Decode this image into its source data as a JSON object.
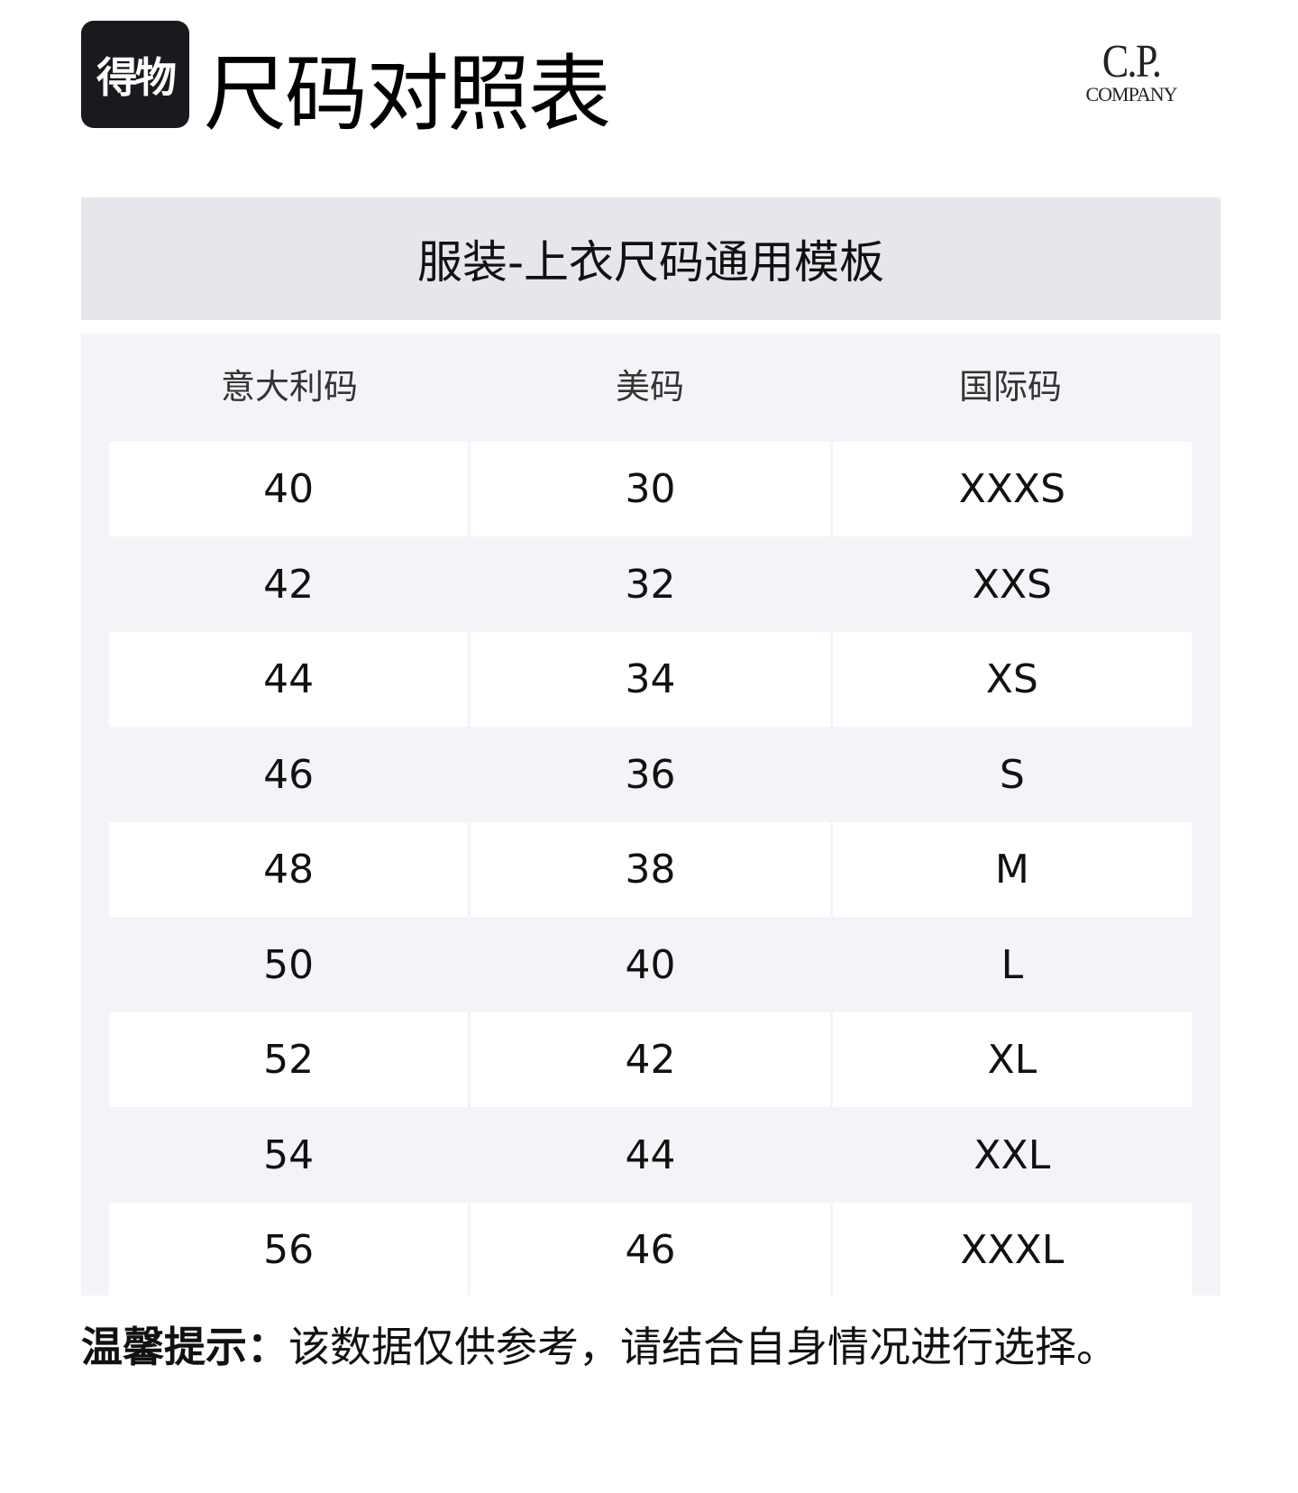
{
  "header": {
    "logo_text": "得物",
    "title": "尺码对照表",
    "brand_logo": {
      "line1": "C.P.",
      "line2": "COMPANY"
    }
  },
  "section_title": "服装-上衣尺码通用模板",
  "table": {
    "columns": [
      "意大利码",
      "美码",
      "国际码"
    ],
    "rows": [
      [
        "40",
        "30",
        "XXXS"
      ],
      [
        "42",
        "32",
        "XXS"
      ],
      [
        "44",
        "34",
        "XS"
      ],
      [
        "46",
        "36",
        "S"
      ],
      [
        "48",
        "38",
        "M"
      ],
      [
        "50",
        "40",
        "L"
      ],
      [
        "52",
        "42",
        "XL"
      ],
      [
        "54",
        "44",
        "XXL"
      ],
      [
        "56",
        "46",
        "XXXL"
      ]
    ]
  },
  "footer": {
    "label": "温馨提示：",
    "text": "该数据仅供参考，请结合自身情况进行选择。"
  }
}
